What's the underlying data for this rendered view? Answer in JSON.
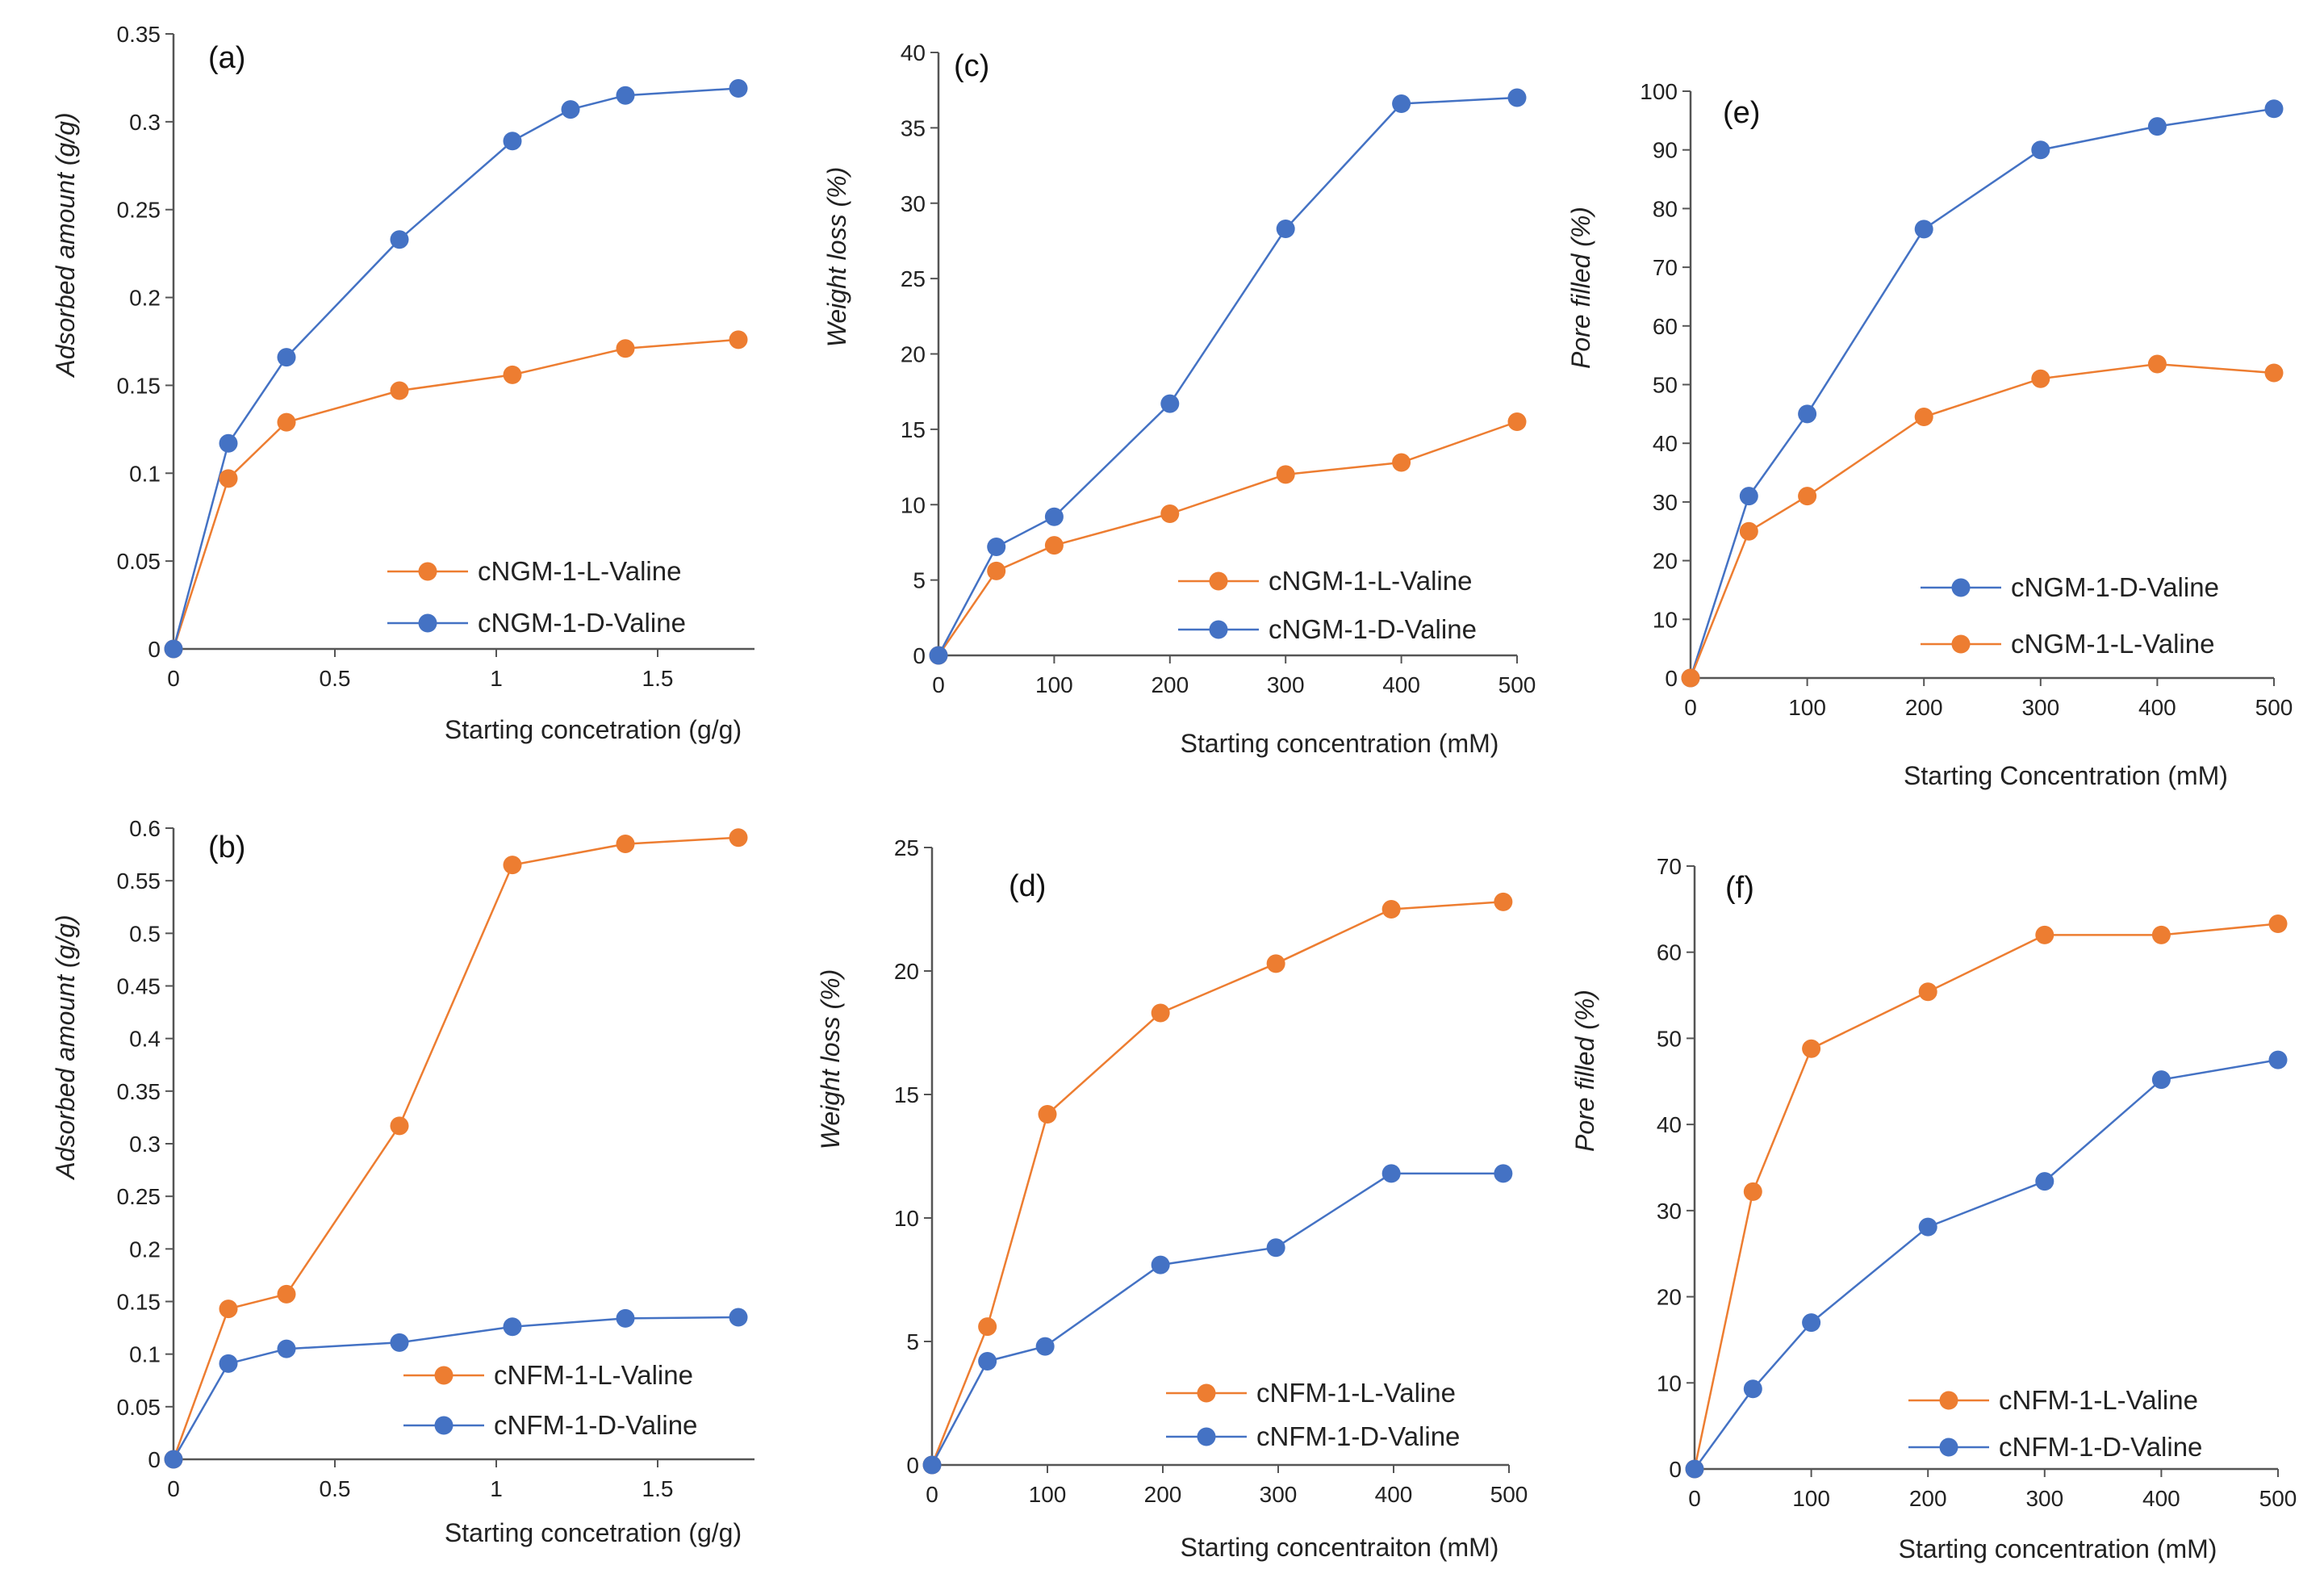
{
  "chart_data": [
    {
      "type": "line",
      "panel_label": "(a)",
      "xlabel": "Starting concetration (g/g)",
      "ylabel": "Adsorbed amount (g/g)",
      "xlim": [
        0,
        1.8
      ],
      "ylim": [
        0,
        0.35
      ],
      "x_ticks": [
        "0",
        "0.5",
        "1",
        "1.5"
      ],
      "y_ticks": [
        "0",
        "0.05",
        "0.1",
        "0.15",
        "0.2",
        "0.25",
        "0.3",
        "0.35"
      ],
      "series": [
        {
          "name": "cNGM-1-L-Valine",
          "color": "#ED7D31",
          "x": [
            0,
            0.17,
            0.35,
            0.7,
            1.05,
            1.4,
            1.75
          ],
          "values": [
            0,
            0.097,
            0.129,
            0.147,
            0.156,
            0.171,
            0.176
          ]
        },
        {
          "name": "cNGM-1-D-Valine",
          "color": "#4472C4",
          "x": [
            0,
            0.17,
            0.35,
            0.7,
            1.05,
            1.23,
            1.4,
            1.75
          ],
          "values": [
            0,
            0.117,
            0.166,
            0.233,
            0.289,
            0.307,
            0.315,
            0.319
          ]
        }
      ],
      "legend": [
        "cNGM-1-L-Valine",
        "cNGM-1-D-Valine"
      ]
    },
    {
      "type": "line",
      "panel_label": "(b)",
      "xlabel": "Starting concetration (g/g)",
      "ylabel": "Adsorbed amount (g/g)",
      "xlim": [
        0,
        1.8
      ],
      "ylim": [
        0,
        0.6
      ],
      "x_ticks": [
        "0",
        "0.5",
        "1",
        "1.5"
      ],
      "y_ticks": [
        "0",
        "0.05",
        "0.1",
        "0.15",
        "0.2",
        "0.25",
        "0.3",
        "0.35",
        "0.4",
        "0.45",
        "0.5",
        "0.55",
        "0.6"
      ],
      "series": [
        {
          "name": "cNFM-1-L-Valine",
          "color": "#ED7D31",
          "x": [
            0,
            0.17,
            0.35,
            0.7,
            1.05,
            1.4,
            1.75
          ],
          "values": [
            0,
            0.143,
            0.157,
            0.317,
            0.565,
            0.585,
            0.591
          ]
        },
        {
          "name": "cNFM-1-D-Valine",
          "color": "#4472C4",
          "x": [
            0,
            0.17,
            0.35,
            0.7,
            1.05,
            1.4,
            1.75
          ],
          "values": [
            0,
            0.091,
            0.105,
            0.111,
            0.126,
            0.134,
            0.135
          ]
        }
      ],
      "legend": [
        "cNFM-1-L-Valine",
        "cNFM-1-D-Valine"
      ]
    },
    {
      "type": "line",
      "panel_label": "(c)",
      "xlabel": "Starting concentration (mM)",
      "ylabel": "Weight loss (%)",
      "xlim": [
        0,
        500
      ],
      "ylim": [
        0,
        40
      ],
      "x_ticks": [
        "0",
        "100",
        "200",
        "300",
        "400",
        "500"
      ],
      "y_ticks": [
        "0",
        "5",
        "10",
        "15",
        "20",
        "25",
        "30",
        "35",
        "40"
      ],
      "series": [
        {
          "name": "cNGM-1-L-Valine",
          "color": "#ED7D31",
          "x": [
            0,
            50,
            100,
            200,
            300,
            400,
            500
          ],
          "values": [
            0,
            5.6,
            7.3,
            9.4,
            12.0,
            12.8,
            15.5
          ]
        },
        {
          "name": "cNGM-1-D-Valine",
          "color": "#4472C4",
          "x": [
            0,
            50,
            100,
            200,
            300,
            400,
            500
          ],
          "values": [
            0,
            7.2,
            9.2,
            16.7,
            28.3,
            36.6,
            37.0
          ]
        }
      ],
      "legend": [
        "cNGM-1-L-Valine",
        "cNGM-1-D-Valine"
      ]
    },
    {
      "type": "line",
      "panel_label": "(d)",
      "xlabel": "Starting concentraiton (mM)",
      "ylabel": "Weight loss (%)",
      "xlim": [
        0,
        500
      ],
      "ylim": [
        0,
        25
      ],
      "x_ticks": [
        "0",
        "100",
        "200",
        "300",
        "400",
        "500"
      ],
      "y_ticks": [
        "0",
        "5",
        "10",
        "15",
        "20",
        "25"
      ],
      "series": [
        {
          "name": "cNFM-1-L-Valine",
          "color": "#ED7D31",
          "x": [
            0,
            48,
            100,
            198,
            298,
            398,
            495
          ],
          "values": [
            0,
            5.6,
            14.2,
            18.3,
            20.3,
            22.5,
            22.8
          ]
        },
        {
          "name": "cNFM-1-D-Valine",
          "color": "#4472C4",
          "x": [
            0,
            48,
            98,
            198,
            298,
            398,
            495
          ],
          "values": [
            0,
            4.2,
            4.8,
            8.1,
            8.8,
            11.8,
            11.8
          ]
        }
      ],
      "legend": [
        "cNFM-1-L-Valine",
        "cNFM-1-D-Valine"
      ]
    },
    {
      "type": "line",
      "panel_label": "(e)",
      "xlabel": "Starting Concentration (mM)",
      "ylabel": "Pore filled (%)",
      "xlim": [
        0,
        500
      ],
      "ylim": [
        0,
        100
      ],
      "x_ticks": [
        "0",
        "100",
        "200",
        "300",
        "400",
        "500"
      ],
      "y_ticks": [
        "0",
        "10",
        "20",
        "30",
        "40",
        "50",
        "60",
        "70",
        "80",
        "90",
        "100"
      ],
      "series": [
        {
          "name": "cNGM-1-D-Valine",
          "color": "#4472C4",
          "x": [
            0,
            50,
            100,
            200,
            300,
            400,
            500
          ],
          "values": [
            0,
            31,
            45,
            76.5,
            90,
            94,
            97
          ]
        },
        {
          "name": "cNGM-1-L-Valine",
          "color": "#ED7D31",
          "x": [
            0,
            50,
            100,
            200,
            300,
            400,
            500
          ],
          "values": [
            0,
            25,
            31,
            44.5,
            51,
            53.5,
            52
          ]
        }
      ],
      "legend": [
        "cNGM-1-D-Valine",
        "cNGM-1-L-Valine"
      ]
    },
    {
      "type": "line",
      "panel_label": "(f)",
      "xlabel": "Starting concentration (mM)",
      "ylabel": "Pore filled (%)",
      "xlim": [
        0,
        500
      ],
      "ylim": [
        0,
        70
      ],
      "x_ticks": [
        "0",
        "100",
        "200",
        "300",
        "400",
        "500"
      ],
      "y_ticks": [
        "0",
        "10",
        "20",
        "30",
        "40",
        "50",
        "60",
        "70"
      ],
      "series": [
        {
          "name": "cNFM-1-L-Valine",
          "color": "#ED7D31",
          "x": [
            0,
            50,
            100,
            200,
            300,
            400,
            500
          ],
          "values": [
            0,
            32.2,
            48.8,
            55.4,
            62.0,
            62.0,
            63.3
          ]
        },
        {
          "name": "cNFM-1-D-Valine",
          "color": "#4472C4",
          "x": [
            0,
            50,
            100,
            200,
            300,
            400,
            500
          ],
          "values": [
            0,
            9.3,
            17.0,
            28.1,
            33.4,
            45.2,
            47.5
          ]
        }
      ],
      "legend": [
        "cNFM-1-L-Valine",
        "cNFM-1-D-Valine"
      ]
    }
  ]
}
